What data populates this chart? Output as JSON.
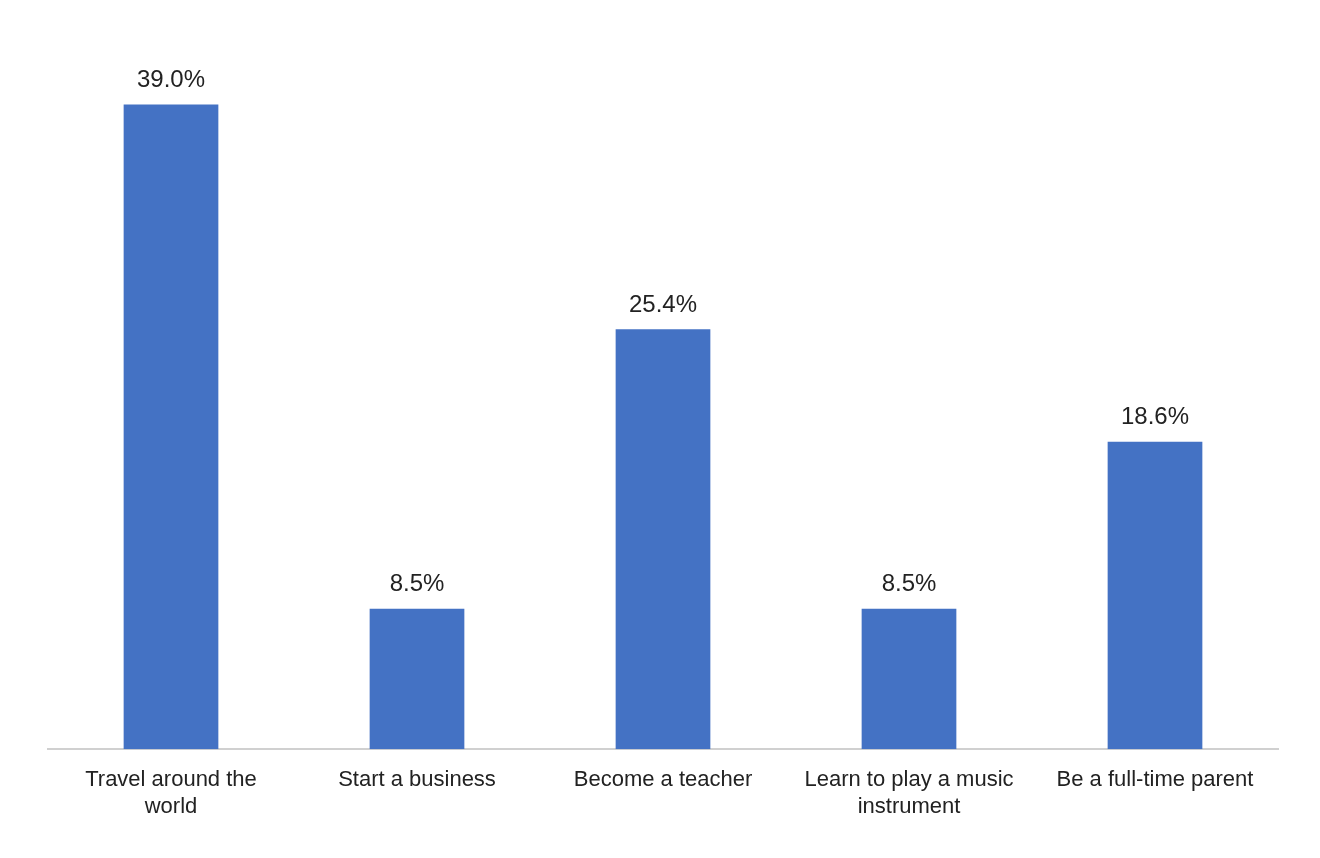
{
  "chart_data": {
    "type": "bar",
    "categories": [
      "Travel around the world",
      "Start a business",
      "Become a teacher",
      "Learn to play a music instrument",
      "Be a full-time parent"
    ],
    "values": [
      39.0,
      8.5,
      25.4,
      8.5,
      18.6
    ],
    "value_labels": [
      "39.0%",
      "8.5%",
      "25.4%",
      "8.5%",
      "18.6%"
    ],
    "color": "#4472c4",
    "grid": false,
    "legend": false
  }
}
